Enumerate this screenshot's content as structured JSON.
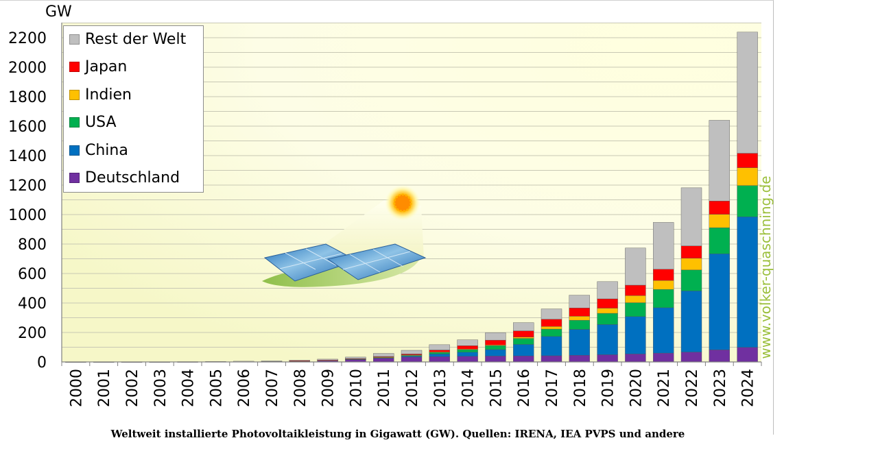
{
  "chart_data": {
    "type": "bar",
    "stacked": true,
    "unit_label": "GW",
    "caption": "Weltweit installierte Photovoltaikleistung in Gigawatt (GW). Quellen: IRENA, IEA PVPS und andere",
    "watermark": "www.volker-quaschning.de",
    "ylim": [
      0,
      2300
    ],
    "yticks": [
      0,
      200,
      400,
      600,
      800,
      1000,
      1200,
      1400,
      1600,
      1800,
      2000,
      2200
    ],
    "grid": true,
    "legend_position": "top-left",
    "categories": [
      "2000",
      "2001",
      "2002",
      "2003",
      "2004",
      "2005",
      "2006",
      "2007",
      "2008",
      "2009",
      "2010",
      "2011",
      "2012",
      "2013",
      "2014",
      "2015",
      "2016",
      "2017",
      "2018",
      "2019",
      "2020",
      "2021",
      "2022",
      "2023",
      "2024"
    ],
    "series": [
      {
        "name": "Deutschland",
        "color": "#7030a0",
        "values": [
          0.1,
          0.2,
          0.3,
          0.4,
          1,
          2,
          3,
          4,
          6,
          10,
          18,
          25,
          33,
          36,
          38,
          40,
          41,
          42,
          45,
          49,
          54,
          60,
          67,
          82,
          99
        ]
      },
      {
        "name": "China",
        "color": "#0070c0",
        "values": [
          0,
          0,
          0,
          0,
          0,
          0,
          0,
          0,
          0,
          0,
          1,
          3,
          7,
          18,
          28,
          44,
          78,
          131,
          176,
          205,
          254,
          308,
          415,
          652,
          886
        ]
      },
      {
        "name": "USA",
        "color": "#00b050",
        "values": [
          0,
          0,
          0,
          0,
          0,
          0,
          0,
          0,
          1,
          1,
          2,
          4,
          7,
          12,
          18,
          26,
          41,
          50,
          62,
          76,
          94,
          124,
          142,
          177,
          212
        ]
      },
      {
        "name": "Indien",
        "color": "#ffc000",
        "values": [
          0,
          0,
          0,
          0,
          0,
          0,
          0,
          0,
          0,
          0,
          0,
          1,
          1,
          2,
          3,
          5,
          9,
          18,
          27,
          35,
          48,
          61,
          80,
          91,
          121
        ]
      },
      {
        "name": "Japan",
        "color": "#ff0000",
        "values": [
          0,
          0,
          0,
          0,
          0,
          0,
          0,
          0,
          1,
          1,
          2,
          4,
          6,
          13,
          23,
          33,
          42,
          49,
          56,
          63,
          71,
          76,
          83,
          90,
          98
        ]
      },
      {
        "name": "Rest der Welt",
        "color": "#bfbfbf",
        "values": [
          0.3,
          0.5,
          0.7,
          1,
          1,
          1,
          2,
          3,
          4,
          7,
          10,
          21,
          25,
          36,
          40,
          50,
          56,
          70,
          87,
          117,
          252,
          318,
          395,
          548,
          822
        ]
      }
    ]
  },
  "legend": {
    "items": [
      {
        "label": "Rest der Welt",
        "color": "#bfbfbf"
      },
      {
        "label": "Japan",
        "color": "#ff0000"
      },
      {
        "label": "Indien",
        "color": "#ffc000"
      },
      {
        "label": "USA",
        "color": "#00b050"
      },
      {
        "label": "China",
        "color": "#0070c0"
      },
      {
        "label": "Deutschland",
        "color": "#7030a0"
      }
    ]
  },
  "decoration": {
    "illustration": "solar-panels-with-sun"
  }
}
